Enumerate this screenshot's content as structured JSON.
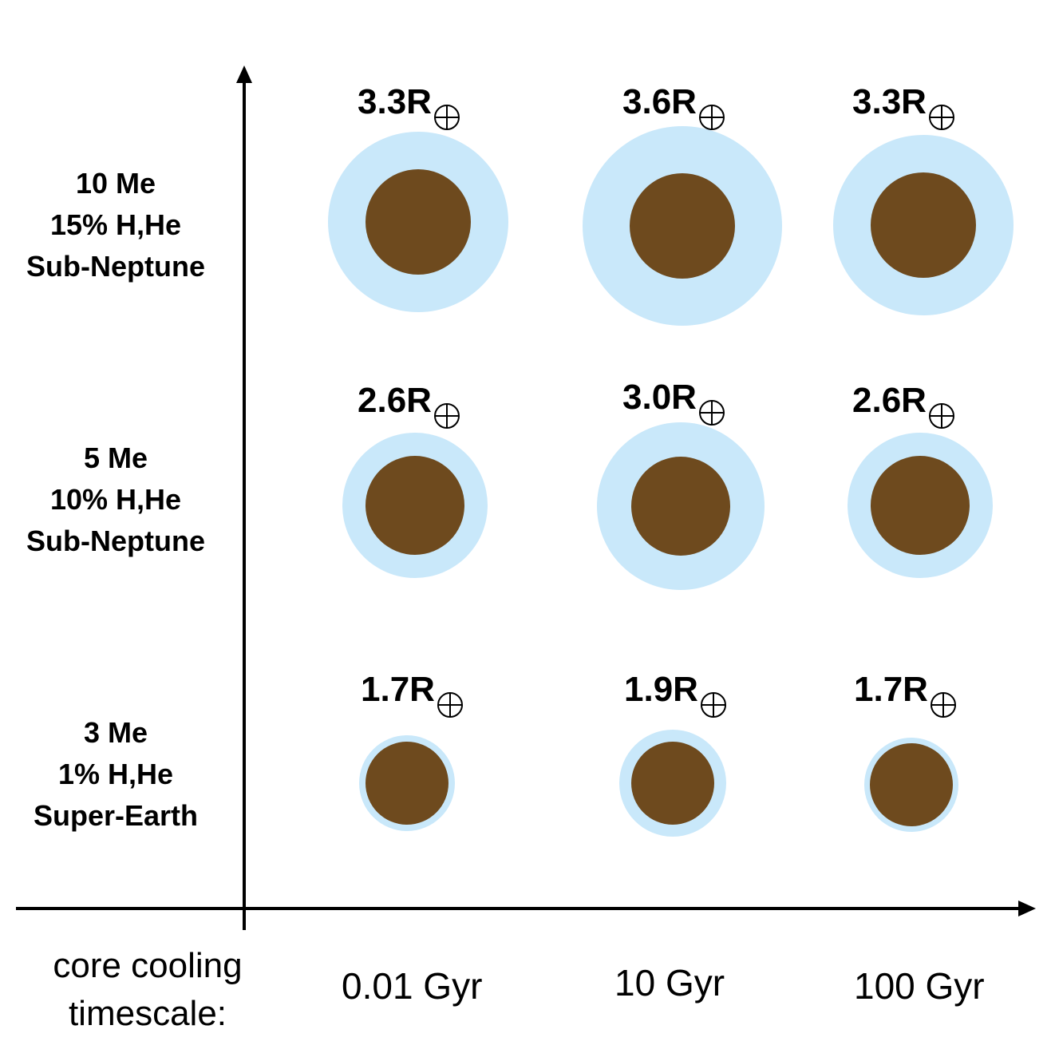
{
  "colors": {
    "envelope": "#c9e8fa",
    "core": "#6e4a1e",
    "axis": "#000000"
  },
  "earth_symbol_icon": "earth-symbol",
  "axis": {
    "x_title_lines": [
      "core cooling",
      "timescale:"
    ],
    "columns": [
      "0.01 Gyr",
      "10 Gyr",
      "100 Gyr"
    ]
  },
  "rows": [
    {
      "lines": [
        "10 Me",
        "15% H,He",
        "Sub-Neptune"
      ],
      "radius_unit": "R",
      "radii": [
        "3.3",
        "3.6",
        "3.3"
      ],
      "radius_values": [
        3.3,
        3.6,
        3.3
      ]
    },
    {
      "lines": [
        "5 Me",
        "10% H,He",
        "Sub-Neptune"
      ],
      "radius_unit": "R",
      "radii": [
        "2.6",
        "3.0",
        "2.6"
      ],
      "radius_values": [
        2.6,
        3.0,
        2.6
      ]
    },
    {
      "lines": [
        "3 Me",
        "1% H,He",
        "Super-Earth"
      ],
      "radius_unit": "R",
      "radii": [
        "1.7",
        "1.9",
        "1.7"
      ],
      "radius_values": [
        1.7,
        1.9,
        1.7
      ]
    }
  ]
}
